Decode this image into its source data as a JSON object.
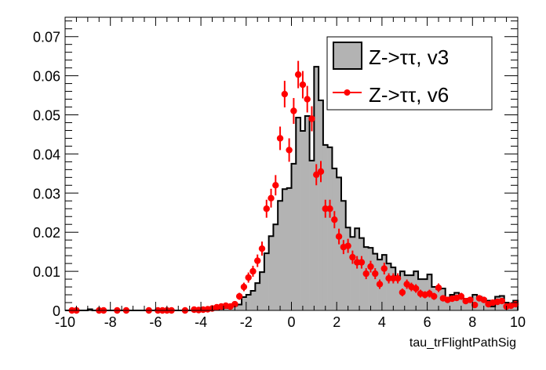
{
  "chart_data": {
    "type": "histogram",
    "title": "",
    "xlabel": "tau_trFlightPathSig",
    "ylabel": "",
    "xlim": [
      -10,
      10
    ],
    "ylim": [
      0,
      0.074
    ],
    "x_ticks": [
      "-10",
      "-8",
      "-6",
      "-4",
      "-2",
      "0",
      "2",
      "4",
      "6",
      "8",
      "10"
    ],
    "y_ticks": [
      "0",
      "0.01",
      "0.02",
      "0.03",
      "0.04",
      "0.05",
      "0.06",
      "0.07"
    ],
    "legend": {
      "placement": "top-right",
      "entries": [
        "Z->ττ, v3",
        "Z->ττ, v6"
      ]
    },
    "colors": {
      "hist_fill": "#b3b3b3",
      "hist_line": "#000000",
      "points": "#ff0000"
    },
    "bin_width": 0.2,
    "series": [
      {
        "name": "Z->ττ, v3",
        "kind": "filled-histogram",
        "bin_low_edges_start": -10,
        "values": [
          0,
          0,
          0,
          0,
          0,
          0.0003,
          0,
          0,
          0,
          0,
          0,
          0,
          0,
          0,
          0,
          0,
          0,
          0,
          0,
          0,
          0,
          0,
          0,
          0,
          0,
          0,
          0,
          0,
          0,
          0.0002,
          0,
          0,
          0.0002,
          0.0003,
          0.0004,
          0.0006,
          0.0009,
          0.0012,
          0.0015,
          0.0034,
          0.004,
          0.005,
          0.007,
          0.0098,
          0.0146,
          0.019,
          0.022,
          0.028,
          0.031,
          0.0313,
          0.0375,
          0.0493,
          0.0459,
          0.0497,
          0.0383,
          0.0623,
          0.0537,
          0.0423,
          0.0417,
          0.0363,
          0.034,
          0.028,
          0.0212,
          0.0188,
          0.021,
          0.0185,
          0.0162,
          0.016,
          0.0145,
          0.013,
          0.0142,
          0.012,
          0.011,
          0.0082,
          0.01,
          0.009,
          0.009,
          0.01,
          0.008,
          0.008,
          0.0092,
          0.006,
          0.0055,
          0.0056,
          0.0026,
          0.004,
          0.0045,
          0.0035,
          0.003,
          0.003,
          0.004,
          0.0035,
          0.003,
          0.0025,
          0.001,
          0.0035,
          0.0037,
          0.002,
          0.0015,
          0.0025
        ]
      },
      {
        "name": "Z->ττ, v6",
        "kind": "points-with-errors",
        "points": [
          [
            -9.7,
            0,
            0.0003
          ],
          [
            -9.5,
            0,
            0.0003
          ],
          [
            -8.5,
            0,
            0.0003
          ],
          [
            -8.3,
            0,
            0.0003
          ],
          [
            -7.7,
            0,
            0.0003
          ],
          [
            -7.3,
            0,
            0.0003
          ],
          [
            -6.3,
            0,
            0.0003
          ],
          [
            -5.9,
            0,
            0.0003
          ],
          [
            -5.7,
            0,
            0.0003
          ],
          [
            -5.5,
            0,
            0.0003
          ],
          [
            -5.3,
            0,
            0.0003
          ],
          [
            -4.7,
            0,
            0.0003
          ],
          [
            -4.3,
            0.0002,
            0.0003
          ],
          [
            -4.1,
            0.0001,
            0.0003
          ],
          [
            -3.9,
            0.0002,
            0.0003
          ],
          [
            -3.7,
            0.0003,
            0.0003
          ],
          [
            -3.5,
            0.0005,
            0.0004
          ],
          [
            -3.3,
            0.0008,
            0.0005
          ],
          [
            -3.1,
            0.001,
            0.0005
          ],
          [
            -2.9,
            0.0012,
            0.0006
          ],
          [
            -2.7,
            0.001,
            0.0006
          ],
          [
            -2.5,
            0.0016,
            0.0007
          ],
          [
            -2.3,
            0.0036,
            0.0009
          ],
          [
            -2.1,
            0.006,
            0.0011
          ],
          [
            -1.9,
            0.0084,
            0.0013
          ],
          [
            -1.7,
            0.01,
            0.0014
          ],
          [
            -1.5,
            0.0127,
            0.0016
          ],
          [
            -1.3,
            0.0158,
            0.0018
          ],
          [
            -1.1,
            0.026,
            0.0023
          ],
          [
            -0.9,
            0.0287,
            0.0024
          ],
          [
            -0.7,
            0.032,
            0.0026
          ],
          [
            -0.5,
            0.044,
            0.003
          ],
          [
            -0.3,
            0.0553,
            0.0034
          ],
          [
            -0.1,
            0.041,
            0.003
          ],
          [
            0.1,
            0.051,
            0.0033
          ],
          [
            0.3,
            0.0603,
            0.0035
          ],
          [
            0.5,
            0.0577,
            0.0035
          ],
          [
            0.7,
            0.054,
            0.0034
          ],
          [
            0.9,
            0.049,
            0.0032
          ],
          [
            1.1,
            0.0347,
            0.0027
          ],
          [
            1.3,
            0.0355,
            0.0027
          ],
          [
            1.5,
            0.026,
            0.0023
          ],
          [
            1.7,
            0.026,
            0.0023
          ],
          [
            1.9,
            0.0232,
            0.0022
          ],
          [
            2.1,
            0.0189,
            0.002
          ],
          [
            2.3,
            0.0162,
            0.0018
          ],
          [
            2.5,
            0.0165,
            0.0018
          ],
          [
            2.7,
            0.0136,
            0.0017
          ],
          [
            2.9,
            0.0123,
            0.0016
          ],
          [
            3.1,
            0.0123,
            0.0016
          ],
          [
            3.3,
            0.0094,
            0.0014
          ],
          [
            3.5,
            0.0112,
            0.0015
          ],
          [
            3.7,
            0.0094,
            0.0014
          ],
          [
            3.9,
            0.0067,
            0.0012
          ],
          [
            4.1,
            0.0107,
            0.0015
          ],
          [
            4.3,
            0.0082,
            0.0013
          ],
          [
            4.5,
            0.0082,
            0.0013
          ],
          [
            4.7,
            0.0082,
            0.0013
          ],
          [
            4.9,
            0.0046,
            0.001
          ],
          [
            5.1,
            0.0067,
            0.0012
          ],
          [
            5.3,
            0.006,
            0.0011
          ],
          [
            5.5,
            0.0056,
            0.0011
          ],
          [
            5.7,
            0.0043,
            0.001
          ],
          [
            5.9,
            0.004,
            0.0009
          ],
          [
            6.1,
            0.0043,
            0.001
          ],
          [
            6.3,
            0.0036,
            0.0009
          ],
          [
            6.5,
            0.0058,
            0.0011
          ],
          [
            6.7,
            0.0031,
            0.0008
          ],
          [
            6.9,
            0.0027,
            0.0008
          ],
          [
            7.1,
            0.003,
            0.0008
          ],
          [
            7.3,
            0.0032,
            0.0008
          ],
          [
            7.5,
            0.0036,
            0.0009
          ],
          [
            7.7,
            0.0024,
            0.0007
          ],
          [
            7.9,
            0.0027,
            0.0008
          ],
          [
            8.1,
            0.0014,
            0.0006
          ],
          [
            8.3,
            0.0031,
            0.0008
          ],
          [
            8.5,
            0.0027,
            0.0008
          ],
          [
            8.7,
            0.0016,
            0.0006
          ],
          [
            8.9,
            0.002,
            0.0007
          ],
          [
            9.1,
            0.0022,
            0.0007
          ],
          [
            9.3,
            0.0024,
            0.0007
          ],
          [
            9.5,
            0.001,
            0.0005
          ],
          [
            9.7,
            0.0012,
            0.0005
          ],
          [
            9.9,
            0.0016,
            0.0006
          ]
        ]
      }
    ]
  }
}
